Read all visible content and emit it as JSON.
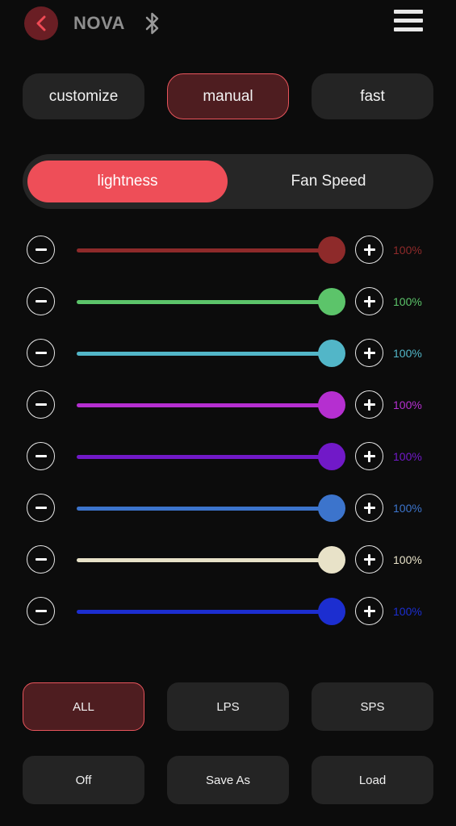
{
  "header": {
    "title": "NOVA",
    "back_icon": "chevron-left-icon",
    "bluetooth_icon": "bluetooth-icon",
    "menu_icon": "hamburger-menu-icon"
  },
  "modes": [
    {
      "label": "customize",
      "active": false
    },
    {
      "label": "manual",
      "active": true
    },
    {
      "label": "fast",
      "active": false
    }
  ],
  "segment": {
    "options": [
      "lightness",
      "Fan Speed"
    ],
    "selected": "lightness"
  },
  "channels": [
    {
      "name": "channel-1",
      "value": "100%",
      "level": 1.0,
      "color": "#8e2a2a"
    },
    {
      "name": "channel-2",
      "value": "100%",
      "level": 1.0,
      "color": "#5cc46a"
    },
    {
      "name": "channel-3",
      "value": "100%",
      "level": 1.0,
      "color": "#52b6c8"
    },
    {
      "name": "channel-4",
      "value": "100%",
      "level": 1.0,
      "color": "#b52fd0"
    },
    {
      "name": "channel-5",
      "value": "100%",
      "level": 1.0,
      "color": "#7119c8"
    },
    {
      "name": "channel-6",
      "value": "100%",
      "level": 1.0,
      "color": "#3c74cc"
    },
    {
      "name": "channel-7",
      "value": "100%",
      "level": 1.0,
      "color": "#e8e2c8"
    },
    {
      "name": "channel-8",
      "value": "100%",
      "level": 1.0,
      "color": "#1c2ed0"
    }
  ],
  "filters": [
    {
      "label": "ALL",
      "active": true
    },
    {
      "label": "LPS",
      "active": false
    },
    {
      "label": "SPS",
      "active": false
    }
  ],
  "actions": [
    {
      "label": "Off"
    },
    {
      "label": "Save As"
    },
    {
      "label": "Load"
    }
  ],
  "colors": {
    "accent": "#ee4e58",
    "active_pill_bg": "#4e1d20",
    "back_button_bg": "#6a1e24"
  }
}
